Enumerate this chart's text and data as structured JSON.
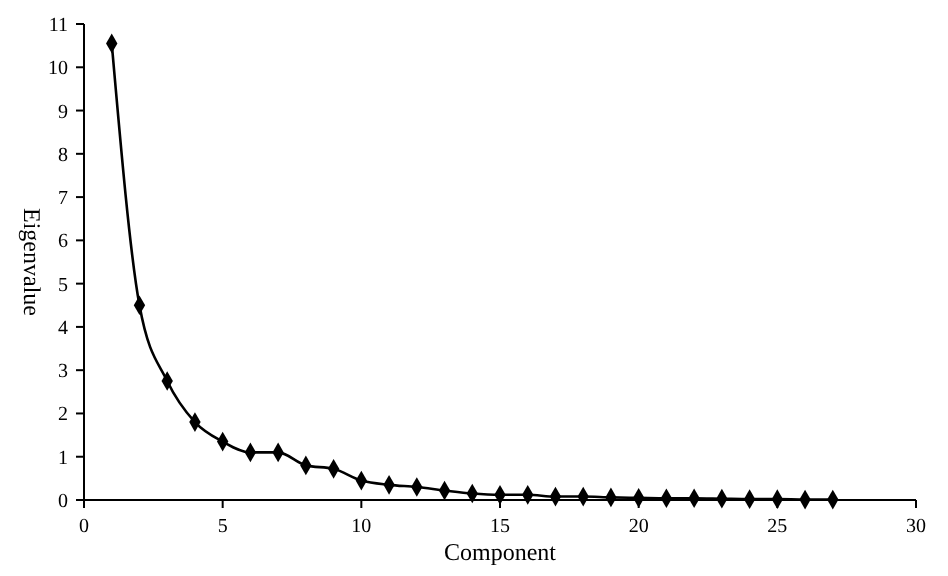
{
  "chart_data": {
    "type": "line",
    "xlabel": "Component",
    "ylabel": "Eigenvalue",
    "x": [
      1,
      2,
      3,
      4,
      5,
      6,
      7,
      8,
      9,
      10,
      11,
      12,
      13,
      14,
      15,
      16,
      17,
      18,
      19,
      20,
      21,
      22,
      23,
      24,
      25,
      26,
      27
    ],
    "series": [
      {
        "color": "#000000",
        "values": [
          10.55,
          4.5,
          2.75,
          1.8,
          1.35,
          1.1,
          1.1,
          0.8,
          0.72,
          0.45,
          0.35,
          0.3,
          0.22,
          0.15,
          0.12,
          0.12,
          0.08,
          0.08,
          0.06,
          0.05,
          0.04,
          0.04,
          0.03,
          0.02,
          0.02,
          0.01,
          0.01
        ]
      }
    ],
    "xlim": [
      0,
      30
    ],
    "xticks": [
      0,
      5,
      10,
      15,
      20,
      25,
      30
    ],
    "ylim": [
      0,
      11
    ],
    "yticks": [
      0,
      1,
      2,
      3,
      4,
      5,
      6,
      7,
      8,
      9,
      10,
      11
    ],
    "marker": "diamond",
    "line_style": "solid",
    "grid": false
  }
}
